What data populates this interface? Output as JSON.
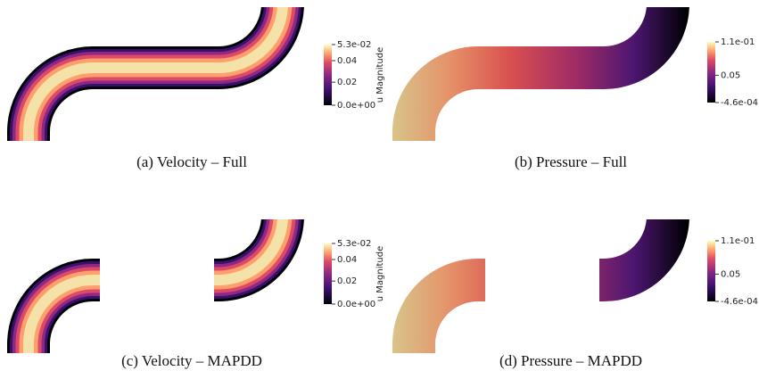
{
  "panels": [
    {
      "caption": "(a) Velocity – Full",
      "colorbar": {
        "title": "u Magnitude",
        "ticks": [
          "5.3e-02",
          "0.04",
          "0.02",
          "0.0e+00"
        ]
      }
    },
    {
      "caption": "(b) Pressure – Full",
      "colorbar": {
        "ticks": [
          "1.1e-01",
          "0.05",
          "-4.6e-04"
        ]
      }
    },
    {
      "caption": "(c) Velocity – MAPDD",
      "colorbar": {
        "title": "u Magnitude",
        "ticks": [
          "5.3e-02",
          "0.04",
          "0.02",
          "0.0e+00"
        ]
      }
    },
    {
      "caption": "(d) Pressure – MAPDD",
      "colorbar": {
        "ticks": [
          "1.1e-01",
          "0.05",
          "-4.6e-04"
        ]
      }
    }
  ]
}
